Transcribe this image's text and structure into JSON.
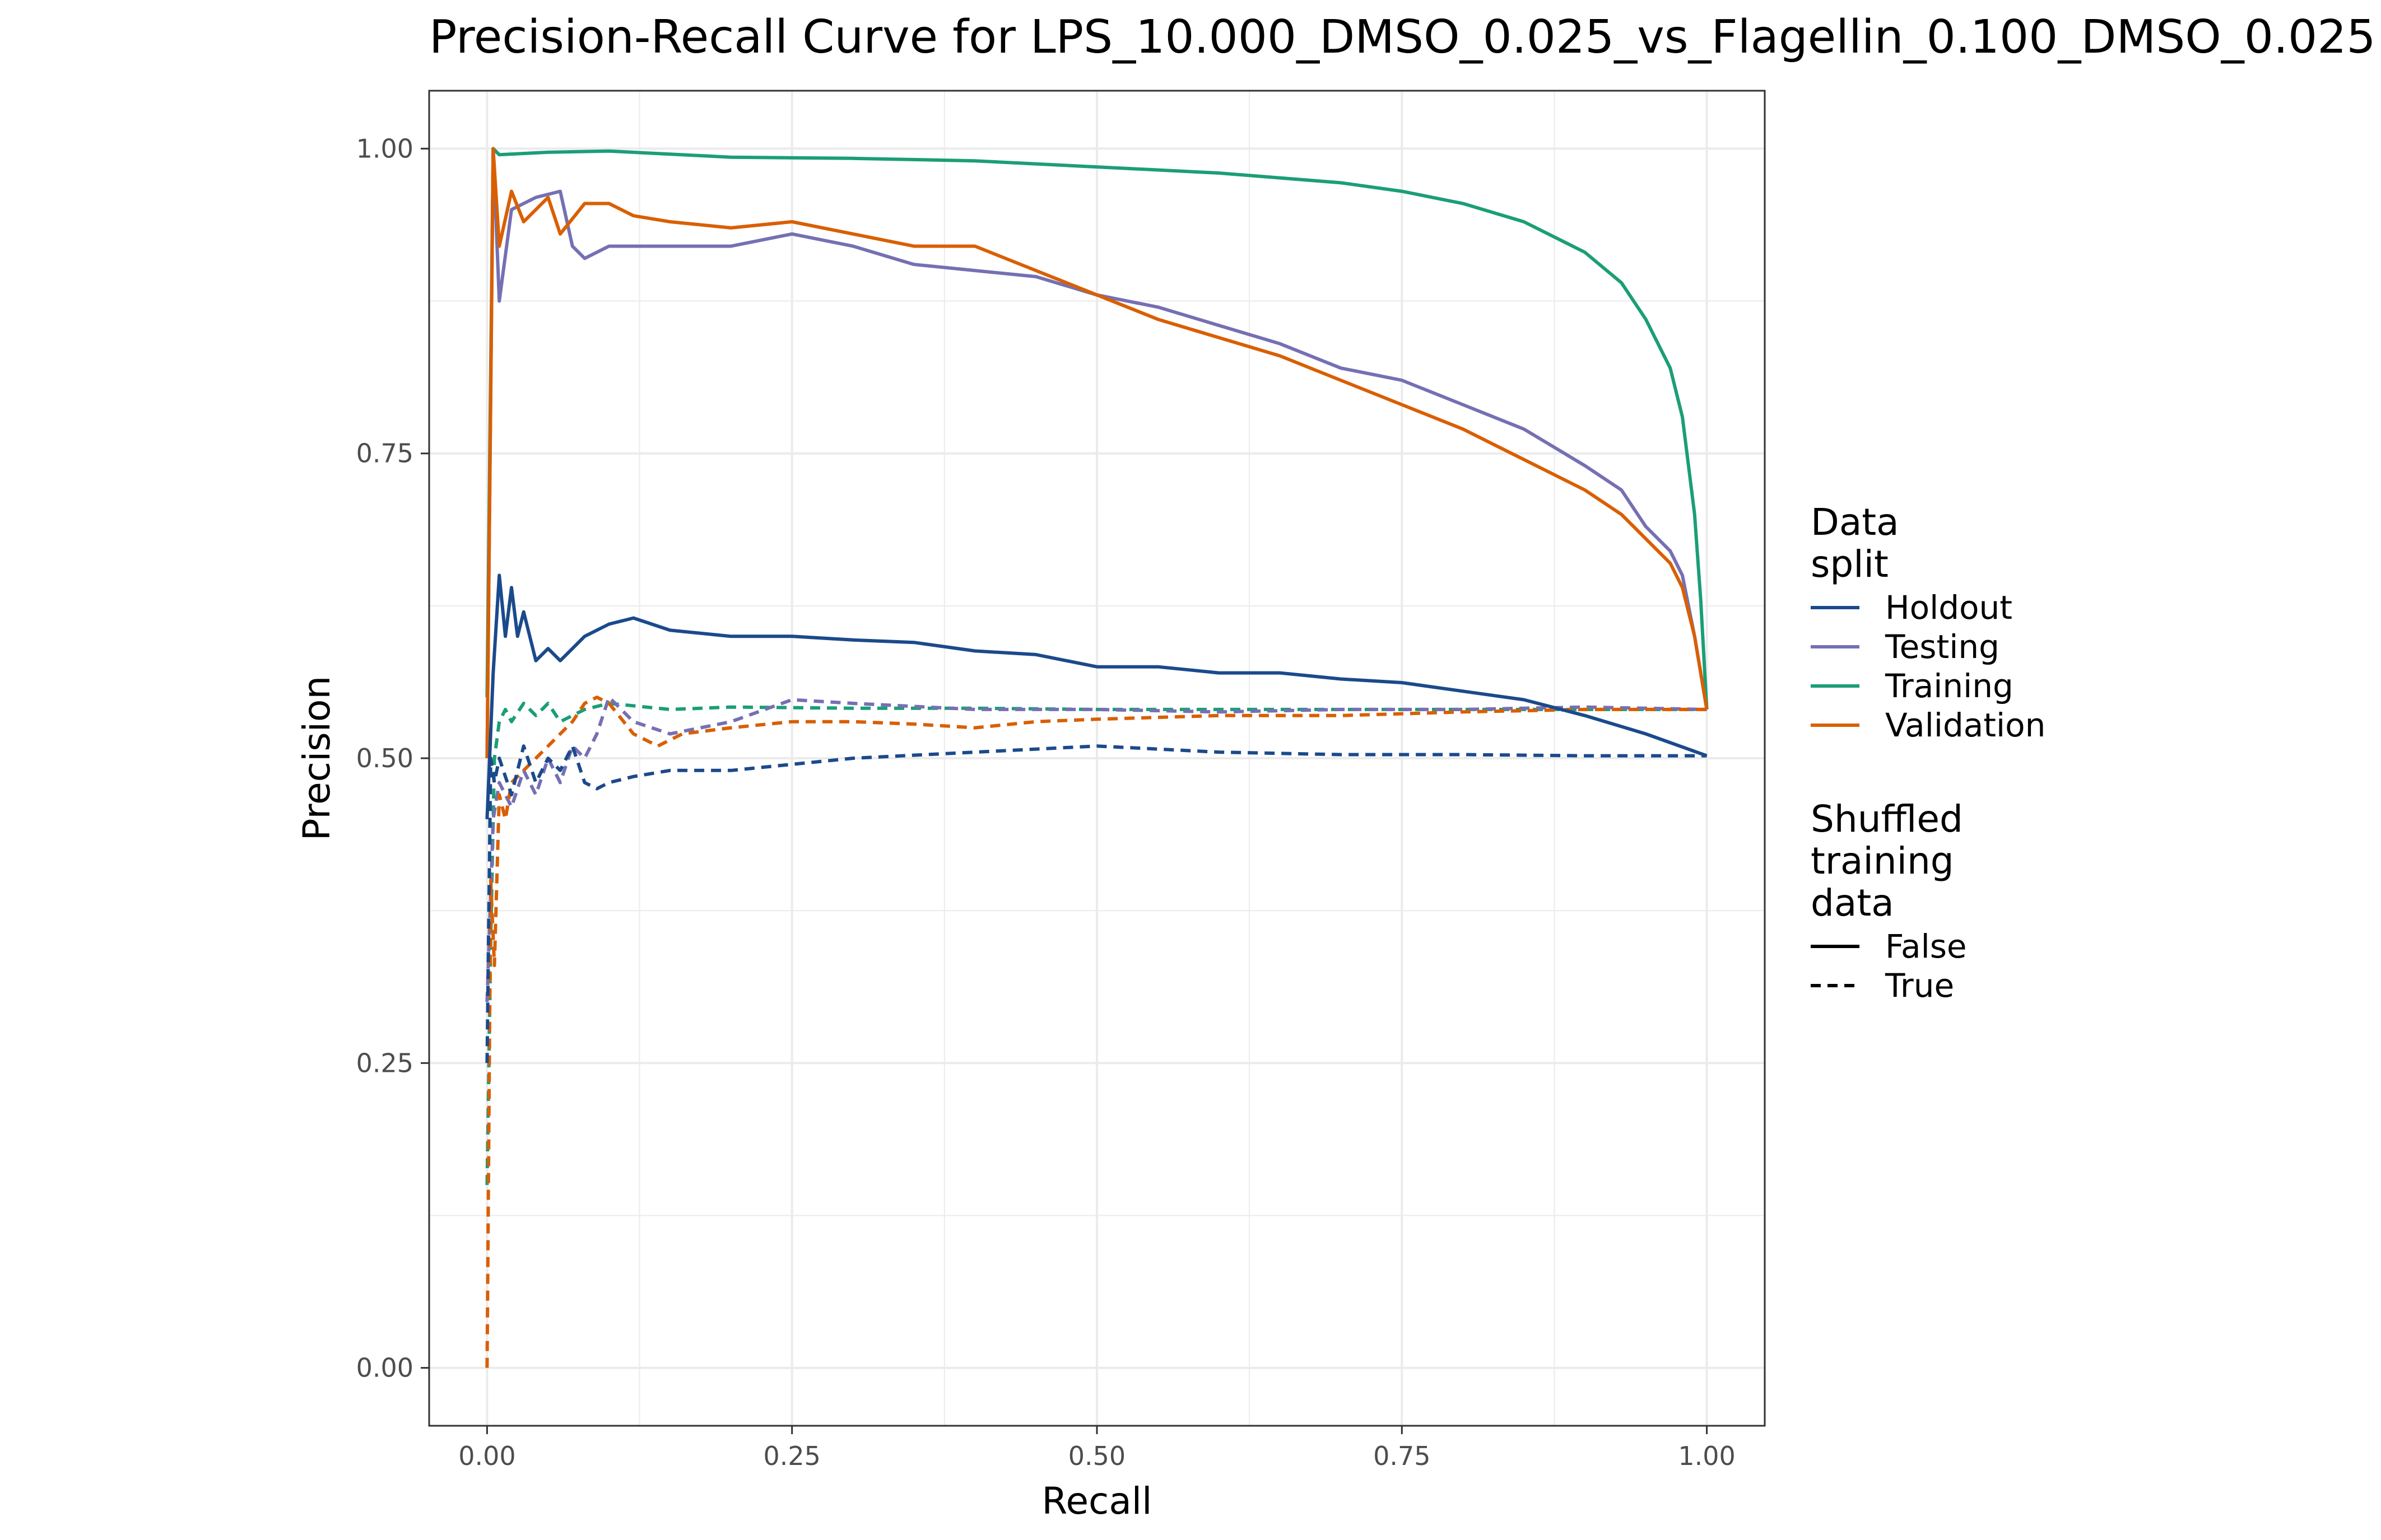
{
  "chart_data": {
    "type": "line",
    "title": "Precision-Recall Curve for LPS_10.000_DMSO_0.025_vs_Flagellin_0.100_DMSO_0.025",
    "xlabel": "Recall",
    "ylabel": "Precision",
    "xlim": [
      -0.0475,
      1.0475
    ],
    "ylim": [
      -0.0475,
      1.0475
    ],
    "x_ticks": [
      0,
      0.25,
      0.5,
      0.75,
      1
    ],
    "x_tick_labels": [
      "0.00",
      "0.25",
      "0.50",
      "0.75",
      "1.00"
    ],
    "y_ticks": [
      0,
      0.25,
      0.5,
      0.75,
      1
    ],
    "y_tick_labels": [
      "0.00",
      "0.25",
      "0.50",
      "0.75",
      "1.00"
    ],
    "grid": true,
    "legend_position": "right",
    "legends": [
      {
        "title": "Data\nsplit",
        "entries": [
          {
            "label": "Holdout",
            "color": "#1b4a8c"
          },
          {
            "label": "Testing",
            "color": "#7570b3"
          },
          {
            "label": "Training",
            "color": "#1b9e77"
          },
          {
            "label": "Validation",
            "color": "#d95f02"
          }
        ]
      },
      {
        "title": "Shuffled\ntraining\ndata",
        "entries": [
          {
            "label": "False",
            "linetype": "solid"
          },
          {
            "label": "True",
            "linetype": "dashed"
          }
        ]
      }
    ],
    "series": [
      {
        "split": "Training",
        "shuffled": "False",
        "color": "#1b9e77",
        "linetype": "solid",
        "x": [
          0,
          0.005,
          0.01,
          0.05,
          0.1,
          0.2,
          0.3,
          0.4,
          0.5,
          0.6,
          0.7,
          0.75,
          0.8,
          0.85,
          0.9,
          0.93,
          0.95,
          0.97,
          0.98,
          0.99,
          0.995,
          1.0
        ],
        "y": [
          0.55,
          1.0,
          0.995,
          0.997,
          0.998,
          0.993,
          0.992,
          0.99,
          0.985,
          0.98,
          0.972,
          0.965,
          0.955,
          0.94,
          0.915,
          0.89,
          0.86,
          0.82,
          0.78,
          0.7,
          0.63,
          0.54
        ]
      },
      {
        "split": "Testing",
        "shuffled": "False",
        "color": "#7570b3",
        "linetype": "solid",
        "x": [
          0,
          0.005,
          0.01,
          0.02,
          0.04,
          0.06,
          0.07,
          0.08,
          0.1,
          0.15,
          0.2,
          0.25,
          0.3,
          0.35,
          0.4,
          0.45,
          0.5,
          0.55,
          0.6,
          0.65,
          0.7,
          0.75,
          0.8,
          0.85,
          0.9,
          0.93,
          0.95,
          0.97,
          0.98,
          0.99,
          1.0
        ],
        "y": [
          0.5,
          1.0,
          0.875,
          0.95,
          0.96,
          0.965,
          0.92,
          0.91,
          0.92,
          0.92,
          0.92,
          0.93,
          0.92,
          0.905,
          0.9,
          0.895,
          0.88,
          0.87,
          0.855,
          0.84,
          0.82,
          0.81,
          0.79,
          0.77,
          0.74,
          0.72,
          0.69,
          0.67,
          0.65,
          0.6,
          0.54
        ]
      },
      {
        "split": "Validation",
        "shuffled": "False",
        "color": "#d95f02",
        "linetype": "solid",
        "x": [
          0,
          0.005,
          0.01,
          0.02,
          0.03,
          0.05,
          0.06,
          0.08,
          0.1,
          0.12,
          0.15,
          0.2,
          0.25,
          0.3,
          0.35,
          0.4,
          0.45,
          0.5,
          0.55,
          0.6,
          0.65,
          0.7,
          0.75,
          0.8,
          0.85,
          0.9,
          0.93,
          0.95,
          0.97,
          0.98,
          0.99,
          1.0
        ],
        "y": [
          0.5,
          1.0,
          0.92,
          0.965,
          0.94,
          0.96,
          0.93,
          0.955,
          0.955,
          0.945,
          0.94,
          0.935,
          0.94,
          0.93,
          0.92,
          0.92,
          0.9,
          0.88,
          0.86,
          0.845,
          0.83,
          0.81,
          0.79,
          0.77,
          0.745,
          0.72,
          0.7,
          0.68,
          0.66,
          0.64,
          0.6,
          0.54
        ]
      },
      {
        "split": "Holdout",
        "shuffled": "False",
        "color": "#1b4a8c",
        "linetype": "solid",
        "x": [
          0,
          0.005,
          0.01,
          0.015,
          0.02,
          0.025,
          0.03,
          0.04,
          0.05,
          0.06,
          0.08,
          0.1,
          0.12,
          0.15,
          0.2,
          0.25,
          0.3,
          0.35,
          0.4,
          0.45,
          0.5,
          0.55,
          0.6,
          0.65,
          0.7,
          0.75,
          0.8,
          0.85,
          0.9,
          0.95,
          1.0
        ],
        "y": [
          0.45,
          0.57,
          0.65,
          0.6,
          0.64,
          0.6,
          0.62,
          0.58,
          0.59,
          0.58,
          0.6,
          0.61,
          0.615,
          0.605,
          0.6,
          0.6,
          0.597,
          0.595,
          0.588,
          0.585,
          0.575,
          0.575,
          0.57,
          0.57,
          0.565,
          0.562,
          0.555,
          0.548,
          0.535,
          0.52,
          0.502
        ]
      },
      {
        "split": "Training",
        "shuffled": "True",
        "color": "#1b9e77",
        "linetype": "dashed",
        "x": [
          0,
          0.003,
          0.006,
          0.01,
          0.015,
          0.02,
          0.03,
          0.04,
          0.05,
          0.06,
          0.08,
          0.1,
          0.15,
          0.2,
          0.3,
          0.4,
          0.5,
          0.6,
          0.7,
          0.8,
          0.9,
          1.0
        ],
        "y": [
          0.15,
          0.35,
          0.5,
          0.53,
          0.54,
          0.53,
          0.545,
          0.535,
          0.545,
          0.53,
          0.54,
          0.545,
          0.54,
          0.542,
          0.541,
          0.541,
          0.54,
          0.54,
          0.54,
          0.54,
          0.54,
          0.54
        ]
      },
      {
        "split": "Testing",
        "shuffled": "True",
        "color": "#7570b3",
        "linetype": "dashed",
        "x": [
          0,
          0.005,
          0.01,
          0.02,
          0.03,
          0.04,
          0.05,
          0.06,
          0.07,
          0.08,
          0.09,
          0.1,
          0.12,
          0.15,
          0.2,
          0.25,
          0.3,
          0.4,
          0.5,
          0.6,
          0.7,
          0.8,
          0.9,
          1.0
        ],
        "y": [
          0.3,
          0.45,
          0.48,
          0.46,
          0.49,
          0.47,
          0.5,
          0.48,
          0.51,
          0.5,
          0.52,
          0.55,
          0.53,
          0.52,
          0.53,
          0.548,
          0.545,
          0.54,
          0.54,
          0.538,
          0.54,
          0.54,
          0.542,
          0.54
        ]
      },
      {
        "split": "Validation",
        "shuffled": "True",
        "color": "#d95f02",
        "linetype": "dashed",
        "x": [
          0,
          0.003,
          0.006,
          0.01,
          0.015,
          0.02,
          0.03,
          0.04,
          0.05,
          0.06,
          0.07,
          0.08,
          0.09,
          0.1,
          0.12,
          0.14,
          0.16,
          0.2,
          0.25,
          0.3,
          0.35,
          0.4,
          0.45,
          0.5,
          0.6,
          0.7,
          0.8,
          0.9,
          1.0
        ],
        "y": [
          0.0,
          0.4,
          0.33,
          0.47,
          0.45,
          0.48,
          0.49,
          0.5,
          0.51,
          0.52,
          0.53,
          0.545,
          0.55,
          0.545,
          0.52,
          0.51,
          0.52,
          0.525,
          0.53,
          0.53,
          0.528,
          0.525,
          0.53,
          0.532,
          0.535,
          0.535,
          0.538,
          0.54,
          0.54
        ]
      },
      {
        "split": "Holdout",
        "shuffled": "True",
        "color": "#1b4a8c",
        "linetype": "dashed",
        "x": [
          0,
          0.003,
          0.006,
          0.01,
          0.02,
          0.03,
          0.04,
          0.05,
          0.06,
          0.07,
          0.08,
          0.09,
          0.1,
          0.12,
          0.15,
          0.2,
          0.3,
          0.4,
          0.5,
          0.6,
          0.7,
          0.8,
          0.9,
          1.0
        ],
        "y": [
          0.25,
          0.5,
          0.48,
          0.5,
          0.47,
          0.51,
          0.48,
          0.5,
          0.49,
          0.51,
          0.48,
          0.475,
          0.48,
          0.485,
          0.49,
          0.49,
          0.5,
          0.505,
          0.51,
          0.505,
          0.503,
          0.503,
          0.502,
          0.502
        ]
      }
    ]
  }
}
